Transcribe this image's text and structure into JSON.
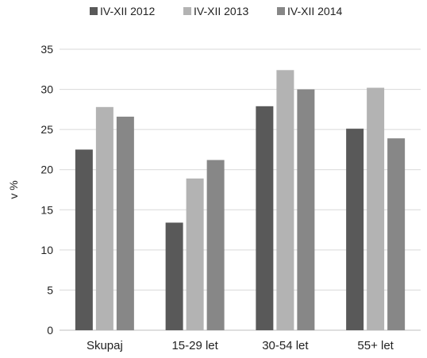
{
  "chart_data": {
    "type": "bar",
    "title": "",
    "xlabel": "",
    "ylabel": "v %",
    "categories": [
      "Skupaj",
      "15-29 let",
      "30-54 let",
      "55+ let"
    ],
    "series": [
      {
        "name": "IV-XII 2012",
        "values": [
          22.5,
          13.4,
          27.9,
          25.1
        ],
        "color": "#595959"
      },
      {
        "name": "IV-XII 2013",
        "values": [
          27.8,
          18.9,
          32.4,
          30.2
        ],
        "color": "#b3b3b3"
      },
      {
        "name": "IV-XII 2014",
        "values": [
          26.6,
          21.2,
          30.0,
          23.9
        ],
        "color": "#878787"
      }
    ],
    "ylim": [
      0,
      35
    ],
    "yticks": [
      0,
      5,
      10,
      15,
      20,
      25,
      30,
      35
    ],
    "grid": true,
    "legend": "top-center"
  }
}
